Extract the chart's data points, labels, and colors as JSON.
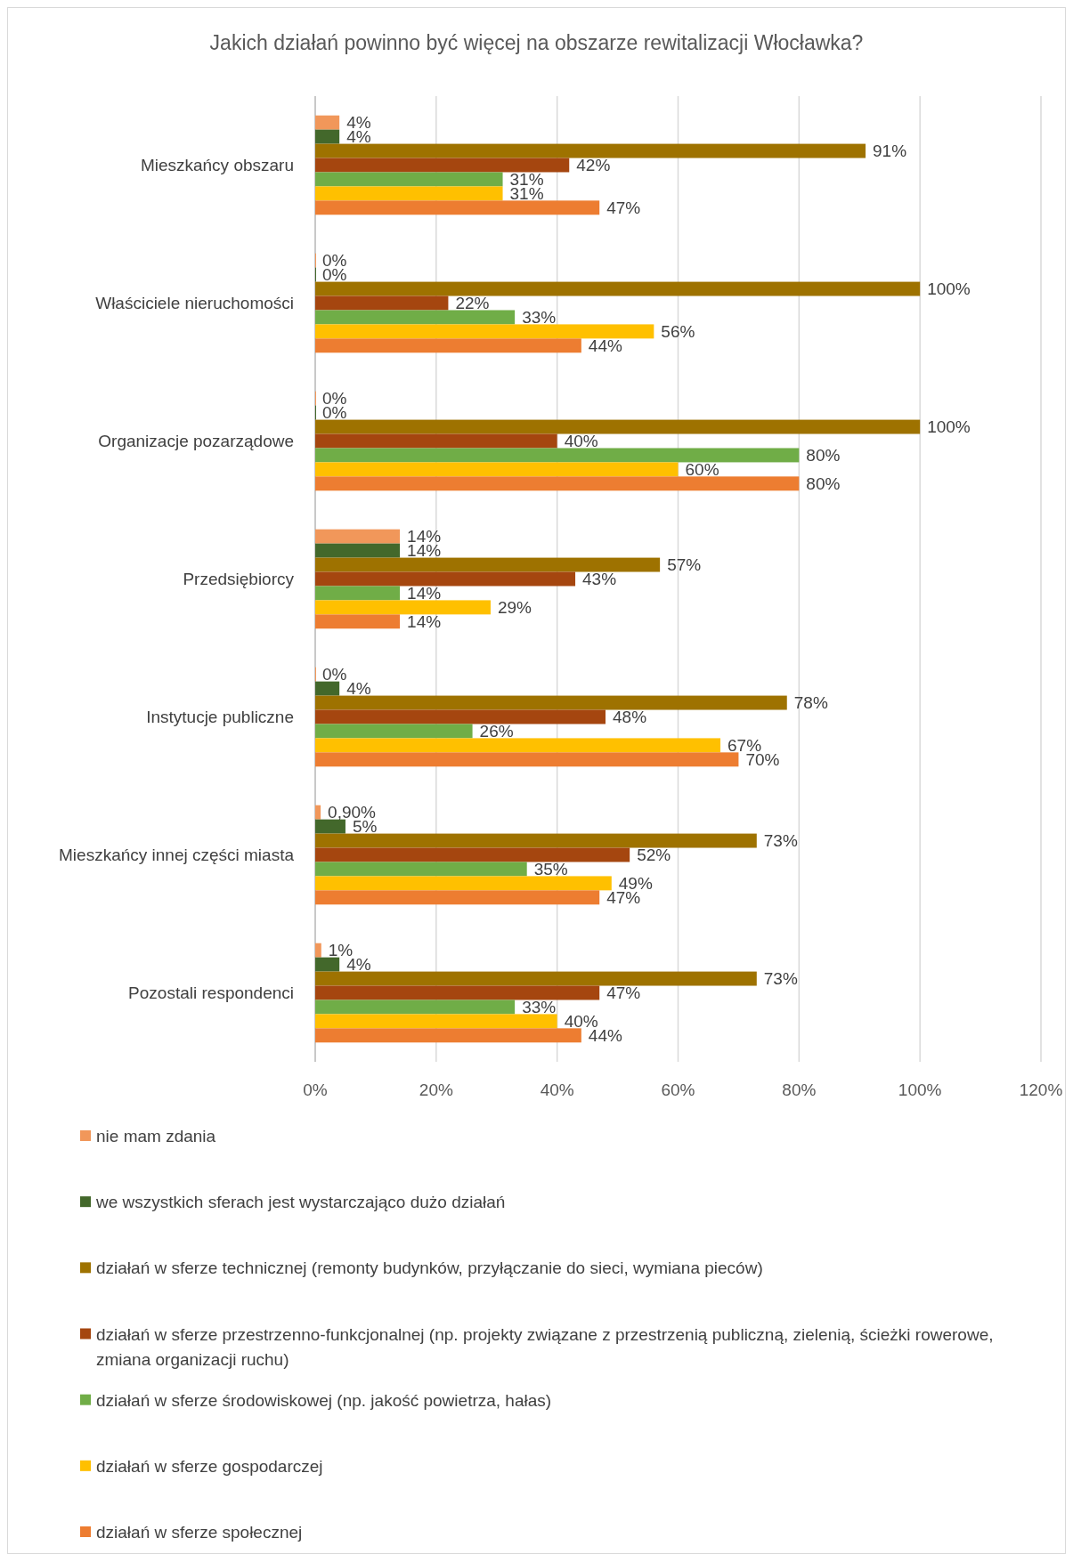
{
  "chart_data": {
    "type": "bar",
    "orientation": "horizontal",
    "title": "Jakich działań powinno być więcej na obszarze rewitalizacji Włocławka?",
    "categories": [
      "Mieszkańcy obszaru",
      "Właściciele nieruchomości",
      "Organizacje pozarządowe",
      "Przedsiębiorcy",
      "Instytucje publiczne",
      "Mieszkańcy innej części miasta",
      "Pozostali respondenci"
    ],
    "series": [
      {
        "name": "nie mam zdania",
        "color": "#f1975a",
        "values": [
          4,
          0,
          0,
          14,
          0,
          0.9,
          1
        ],
        "value_labels": [
          "4%",
          "0%",
          "0%",
          "14%",
          "0%",
          "0,90%",
          "1%"
        ]
      },
      {
        "name": "we wszystkich sferach jest wystarczająco dużo działań",
        "color": "#43682b",
        "values": [
          4,
          0,
          0,
          14,
          4,
          5,
          4
        ],
        "value_labels": [
          "4%",
          "0%",
          "0%",
          "14%",
          "4%",
          "5%",
          "4%"
        ]
      },
      {
        "name": "działań w sferze technicznej (remonty budynków, przyłączanie do sieci, wymiana pieców)",
        "color": "#9e7200",
        "values": [
          91,
          100,
          100,
          57,
          78,
          73,
          73
        ],
        "value_labels": [
          "91%",
          "100%",
          "100%",
          "57%",
          "78%",
          "73%",
          "73%"
        ]
      },
      {
        "name": "działań w sferze przestrzenno-funkcjonalnej (np. projekty związane z przestrzenią publiczną, zielenią, ścieżki rowerowe, zmiana organizacji ruchu)",
        "color": "#a5460f",
        "values": [
          42,
          22,
          40,
          43,
          48,
          52,
          47
        ],
        "value_labels": [
          "42%",
          "22%",
          "40%",
          "43%",
          "48%",
          "52%",
          "47%"
        ]
      },
      {
        "name": "działań w sferze środowiskowej (np. jakość powietrza, hałas)",
        "color": "#70ad47",
        "values": [
          31,
          33,
          80,
          14,
          26,
          35,
          33
        ],
        "value_labels": [
          "31%",
          "33%",
          "80%",
          "14%",
          "26%",
          "35%",
          "33%"
        ]
      },
      {
        "name": "działań w sferze gospodarczej",
        "color": "#ffc000",
        "values": [
          31,
          56,
          60,
          29,
          67,
          49,
          40
        ],
        "value_labels": [
          "31%",
          "56%",
          "60%",
          "29%",
          "67%",
          "49%",
          "40%"
        ]
      },
      {
        "name": "działań w sferze społecznej",
        "color": "#ed7d31",
        "values": [
          47,
          44,
          80,
          14,
          70,
          47,
          44
        ],
        "value_labels": [
          "47%",
          "44%",
          "80%",
          "14%",
          "70%",
          "47%",
          "44%"
        ]
      }
    ],
    "xlim": [
      0,
      120
    ],
    "xticks": [
      {
        "value": 0,
        "label": "0%"
      },
      {
        "value": 20,
        "label": "20%"
      },
      {
        "value": 40,
        "label": "40%"
      },
      {
        "value": 60,
        "label": "60%"
      },
      {
        "value": 80,
        "label": "80%"
      },
      {
        "value": 100,
        "label": "100%"
      },
      {
        "value": 120,
        "label": "120%"
      }
    ],
    "grid": "x",
    "legend": "bottom"
  }
}
